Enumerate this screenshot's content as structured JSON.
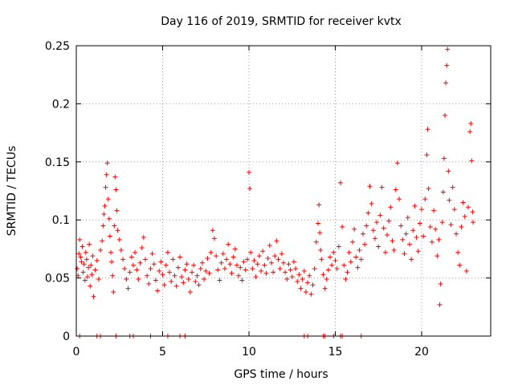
{
  "chart_data": {
    "type": "scatter",
    "title": "Day 116 of 2019, SRMTID for receiver kvtx",
    "xlabel": "GPS time / hours",
    "ylabel": "SRMTID / TECUs",
    "xlim": [
      0,
      24
    ],
    "ylim": [
      0,
      0.25
    ],
    "xticks": [
      0,
      5,
      10,
      15,
      20
    ],
    "yticks": [
      0,
      0.05,
      0.1,
      0.15,
      0.2,
      0.25
    ],
    "xtick_labels": [
      "0",
      "5",
      "10",
      "15",
      "20"
    ],
    "ytick_labels": [
      "0",
      "0.05",
      "0.1",
      "0.15",
      "0.2",
      "0.25"
    ],
    "grid": true,
    "marker": "+",
    "color": "#ff0000",
    "series": [
      {
        "name": "SRMTID",
        "points": [
          [
            0.05,
            0.058
          ],
          [
            0.1,
            0.052
          ],
          [
            0.15,
            0.071
          ],
          [
            0.2,
            0.083
          ],
          [
            0.25,
            0.068
          ],
          [
            0.3,
            0.064
          ],
          [
            0.35,
            0.077
          ],
          [
            0.4,
            0.055
          ],
          [
            0.45,
            0.062
          ],
          [
            0.5,
            0.048
          ],
          [
            0.55,
            0.072
          ],
          [
            0.6,
            0.066
          ],
          [
            0.65,
            0.051
          ],
          [
            0.7,
            0.059
          ],
          [
            0.75,
            0.079
          ],
          [
            0.8,
            0.043
          ],
          [
            0.85,
            0.061
          ],
          [
            0.9,
            0.053
          ],
          [
            0.95,
            0.069
          ],
          [
            1.0,
            0.034
          ],
          [
            1.1,
            0.057
          ],
          [
            1.2,
            0.065
          ],
          [
            1.3,
            0.049
          ],
          [
            1.4,
            0.074
          ],
          [
            1.5,
            0.082
          ],
          [
            1.55,
            0.095
          ],
          [
            1.6,
            0.105
          ],
          [
            1.65,
            0.112
          ],
          [
            1.7,
            0.128
          ],
          [
            1.75,
            0.139
          ],
          [
            1.8,
            0.149
          ],
          [
            1.85,
            0.118
          ],
          [
            1.9,
            0.101
          ],
          [
            1.95,
            0.086
          ],
          [
            2.0,
            0.072
          ],
          [
            2.05,
            0.064
          ],
          [
            2.1,
            0.052
          ],
          [
            2.15,
            0.038
          ],
          [
            2.2,
            0.095
          ],
          [
            2.25,
            0.137
          ],
          [
            2.3,
            0.126
          ],
          [
            2.35,
            0.108
          ],
          [
            2.4,
            0.091
          ],
          [
            2.5,
            0.083
          ],
          [
            2.6,
            0.074
          ],
          [
            2.7,
            0.066
          ],
          [
            2.8,
            0.058
          ],
          [
            2.9,
            0.049
          ],
          [
            3.0,
            0.041
          ],
          [
            3.1,
            0.055
          ],
          [
            3.2,
            0.068
          ],
          [
            3.3,
            0.061
          ],
          [
            3.4,
            0.072
          ],
          [
            3.5,
            0.057
          ],
          [
            3.6,
            0.049
          ],
          [
            3.7,
            0.063
          ],
          [
            3.8,
            0.076
          ],
          [
            3.9,
            0.085
          ],
          [
            4.0,
            0.066
          ],
          [
            4.1,
            0.052
          ],
          [
            4.2,
            0.045
          ],
          [
            4.3,
            0.058
          ],
          [
            4.4,
            0.071
          ],
          [
            4.5,
            0.062
          ],
          [
            4.6,
            0.048
          ],
          [
            4.7,
            0.039
          ],
          [
            4.8,
            0.056
          ],
          [
            4.9,
            0.064
          ],
          [
            5.0,
            0.053
          ],
          [
            5.1,
            0.044
          ],
          [
            5.2,
            0.061
          ],
          [
            5.3,
            0.072
          ],
          [
            5.4,
            0.055
          ],
          [
            5.5,
            0.047
          ],
          [
            5.6,
            0.066
          ],
          [
            5.7,
            0.052
          ],
          [
            5.8,
            0.043
          ],
          [
            5.9,
            0.059
          ],
          [
            6.0,
            0.068
          ],
          [
            6.1,
            0.051
          ],
          [
            6.2,
            0.046
          ],
          [
            6.3,
            0.057
          ],
          [
            6.4,
            0.062
          ],
          [
            6.5,
            0.049
          ],
          [
            6.6,
            0.038
          ],
          [
            6.7,
            0.055
          ],
          [
            6.8,
            0.061
          ],
          [
            6.9,
            0.047
          ],
          [
            7.0,
            0.052
          ],
          [
            7.1,
            0.044
          ],
          [
            7.2,
            0.058
          ],
          [
            7.3,
            0.063
          ],
          [
            7.4,
            0.049
          ],
          [
            7.5,
            0.056
          ],
          [
            7.6,
            0.067
          ],
          [
            7.7,
            0.054
          ],
          [
            7.8,
            0.072
          ],
          [
            7.9,
            0.091
          ],
          [
            8.0,
            0.084
          ],
          [
            8.1,
            0.069
          ],
          [
            8.2,
            0.057
          ],
          [
            8.3,
            0.048
          ],
          [
            8.4,
            0.063
          ],
          [
            8.5,
            0.071
          ],
          [
            8.6,
            0.058
          ],
          [
            8.7,
            0.066
          ],
          [
            8.8,
            0.079
          ],
          [
            8.9,
            0.062
          ],
          [
            9.0,
            0.054
          ],
          [
            9.1,
            0.068
          ],
          [
            9.2,
            0.075
          ],
          [
            9.3,
            0.061
          ],
          [
            9.4,
            0.052
          ],
          [
            9.5,
            0.059
          ],
          [
            9.6,
            0.048
          ],
          [
            9.7,
            0.064
          ],
          [
            9.8,
            0.057
          ],
          [
            9.9,
            0.066
          ],
          [
            10.0,
            0.141
          ],
          [
            10.05,
            0.127
          ],
          [
            10.1,
            0.072
          ],
          [
            10.2,
            0.058
          ],
          [
            10.3,
            0.065
          ],
          [
            10.4,
            0.051
          ],
          [
            10.5,
            0.062
          ],
          [
            10.6,
            0.069
          ],
          [
            10.7,
            0.056
          ],
          [
            10.8,
            0.073
          ],
          [
            10.9,
            0.061
          ],
          [
            11.0,
            0.054
          ],
          [
            11.1,
            0.067
          ],
          [
            11.2,
            0.078
          ],
          [
            11.3,
            0.063
          ],
          [
            11.4,
            0.055
          ],
          [
            11.5,
            0.069
          ],
          [
            11.6,
            0.082
          ],
          [
            11.7,
            0.066
          ],
          [
            11.8,
            0.058
          ],
          [
            11.9,
            0.071
          ],
          [
            12.0,
            0.063
          ],
          [
            12.1,
            0.055
          ],
          [
            12.2,
            0.049
          ],
          [
            12.3,
            0.062
          ],
          [
            12.4,
            0.057
          ],
          [
            12.5,
            0.051
          ],
          [
            12.6,
            0.064
          ],
          [
            12.7,
            0.058
          ],
          [
            12.8,
            0.047
          ],
          [
            12.9,
            0.053
          ],
          [
            13.0,
            0.041
          ],
          [
            13.1,
            0.049
          ],
          [
            13.2,
            0.056
          ],
          [
            13.3,
            0.038
          ],
          [
            13.4,
            0.046
          ],
          [
            13.5,
            0.052
          ],
          [
            13.6,
            0.036
          ],
          [
            13.7,
            0.044
          ],
          [
            13.8,
            0.058
          ],
          [
            13.9,
            0.081
          ],
          [
            14.0,
            0.097
          ],
          [
            14.05,
            0.113
          ],
          [
            14.1,
            0.089
          ],
          [
            14.15,
            0.074
          ],
          [
            14.2,
            0.066
          ],
          [
            14.3,
            0.053
          ],
          [
            14.4,
            0.041
          ],
          [
            14.5,
            0.049
          ],
          [
            14.6,
            0.057
          ],
          [
            14.7,
            0.068
          ],
          [
            14.8,
            0.061
          ],
          [
            14.9,
            0.072
          ],
          [
            15.0,
            0.065
          ],
          [
            15.1,
            0.058
          ],
          [
            15.2,
            0.077
          ],
          [
            15.3,
            0.132
          ],
          [
            15.4,
            0.094
          ],
          [
            15.5,
            0.061
          ],
          [
            15.6,
            0.049
          ],
          [
            15.7,
            0.055
          ],
          [
            15.8,
            0.072
          ],
          [
            15.9,
            0.064
          ],
          [
            16.0,
            0.081
          ],
          [
            16.1,
            0.092
          ],
          [
            16.2,
            0.068
          ],
          [
            16.3,
            0.059
          ],
          [
            16.4,
            0.074
          ],
          [
            16.5,
            0.066
          ],
          [
            16.6,
            0.088
          ],
          [
            16.7,
            0.079
          ],
          [
            16.8,
            0.095
          ],
          [
            16.9,
            0.106
          ],
          [
            17.0,
            0.129
          ],
          [
            17.1,
            0.114
          ],
          [
            17.2,
            0.091
          ],
          [
            17.3,
            0.084
          ],
          [
            17.4,
            0.098
          ],
          [
            17.5,
            0.077
          ],
          [
            17.6,
            0.104
          ],
          [
            17.7,
            0.128
          ],
          [
            17.8,
            0.093
          ],
          [
            17.9,
            0.072
          ],
          [
            18.0,
            0.087
          ],
          [
            18.1,
            0.099
          ],
          [
            18.2,
            0.111
          ],
          [
            18.3,
            0.082
          ],
          [
            18.4,
            0.074
          ],
          [
            18.5,
            0.126
          ],
          [
            18.6,
            0.149
          ],
          [
            18.7,
            0.118
          ],
          [
            18.8,
            0.095
          ],
          [
            18.9,
            0.083
          ],
          [
            19.0,
            0.071
          ],
          [
            19.1,
            0.088
          ],
          [
            19.2,
            0.102
          ],
          [
            19.3,
            0.079
          ],
          [
            19.4,
            0.066
          ],
          [
            19.5,
            0.091
          ],
          [
            19.6,
            0.112
          ],
          [
            19.7,
            0.085
          ],
          [
            19.8,
            0.073
          ],
          [
            19.9,
            0.097
          ],
          [
            20.0,
            0.109
          ],
          [
            20.1,
            0.086
          ],
          [
            20.2,
            0.118
          ],
          [
            20.3,
            0.156
          ],
          [
            20.35,
            0.178
          ],
          [
            20.4,
            0.127
          ],
          [
            20.5,
            0.094
          ],
          [
            20.6,
            0.081
          ],
          [
            20.7,
            0.108
          ],
          [
            20.8,
            0.092
          ],
          [
            20.9,
            0.069
          ],
          [
            21.0,
            0.083
          ],
          [
            21.05,
            0.027
          ],
          [
            21.1,
            0.045
          ],
          [
            21.2,
            0.098
          ],
          [
            21.25,
            0.124
          ],
          [
            21.3,
            0.153
          ],
          [
            21.35,
            0.19
          ],
          [
            21.4,
            0.218
          ],
          [
            21.45,
            0.233
          ],
          [
            21.5,
            0.247
          ],
          [
            21.55,
            0.142
          ],
          [
            21.6,
            0.117
          ],
          [
            21.7,
            0.096
          ],
          [
            21.8,
            0.128
          ],
          [
            21.9,
            0.109
          ],
          [
            22.0,
            0.088
          ],
          [
            22.1,
            0.072
          ],
          [
            22.2,
            0.061
          ],
          [
            22.3,
            0.094
          ],
          [
            22.4,
            0.115
          ],
          [
            22.5,
            0.103
          ],
          [
            22.6,
            0.056
          ],
          [
            22.7,
            0.111
          ],
          [
            22.8,
            0.176
          ],
          [
            22.85,
            0.183
          ],
          [
            22.9,
            0.151
          ],
          [
            22.95,
            0.107
          ],
          [
            22.98,
            0.098
          ],
          [
            0.2,
            0.0
          ],
          [
            1.2,
            0.0
          ],
          [
            1.4,
            0.0
          ],
          [
            2.3,
            0.0
          ],
          [
            3.1,
            0.0
          ],
          [
            3.3,
            0.0
          ],
          [
            4.3,
            0.0
          ],
          [
            5.3,
            0.0
          ],
          [
            6.0,
            0.0
          ],
          [
            6.3,
            0.0
          ],
          [
            13.2,
            0.0
          ],
          [
            13.4,
            0.0
          ],
          [
            14.3,
            0.0
          ],
          [
            14.4,
            0.0
          ],
          [
            14.9,
            0.0
          ],
          [
            15.3,
            0.0
          ],
          [
            15.4,
            0.0
          ],
          [
            16.5,
            0.0
          ]
        ]
      }
    ]
  }
}
